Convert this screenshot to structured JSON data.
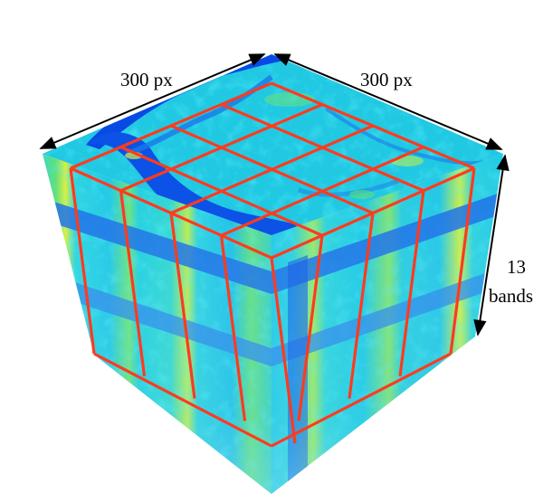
{
  "figure": {
    "width_label": "300 px",
    "depth_label": "300 px",
    "bands_label_line1": "13",
    "bands_label_line2": "bands"
  },
  "colors": {
    "grid_lines": "#ff3b1f",
    "cyan_base": "#1ad0dd",
    "deep_blue": "#0a44e0",
    "mid_blue": "#1e7ae8",
    "green": "#5ce06a",
    "yellow": "#d8f040",
    "arrow": "#000000"
  },
  "grid": {
    "columns": 4,
    "rows": 4
  }
}
